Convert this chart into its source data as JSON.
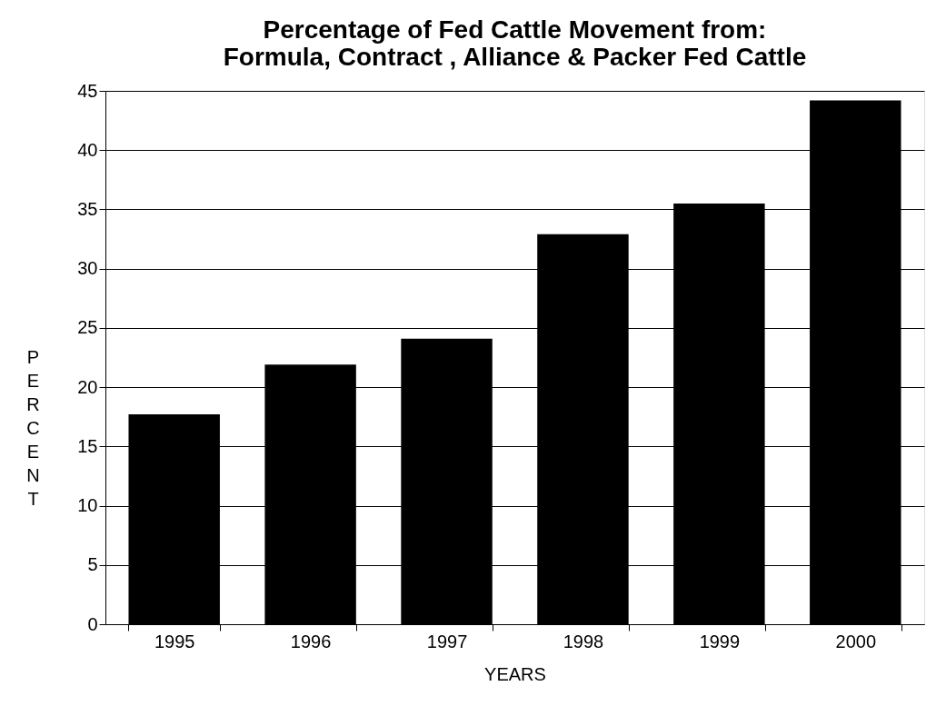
{
  "chart_data": {
    "type": "bar",
    "title": "Percentage of Fed Cattle Movement from:\nFormula, Contract , Alliance & Packer Fed Cattle",
    "xlabel": "YEARS",
    "ylabel": "PERCENT",
    "categories": [
      "1995",
      "1996",
      "1997",
      "1998",
      "1999",
      "2000"
    ],
    "values": [
      17.7,
      21.9,
      24.1,
      32.9,
      35.5,
      44.2
    ],
    "color": "#000000",
    "ylim": [
      0,
      45
    ],
    "yticks": [
      0,
      5,
      10,
      15,
      20,
      25,
      30,
      35,
      40,
      45
    ],
    "grid": "y"
  }
}
